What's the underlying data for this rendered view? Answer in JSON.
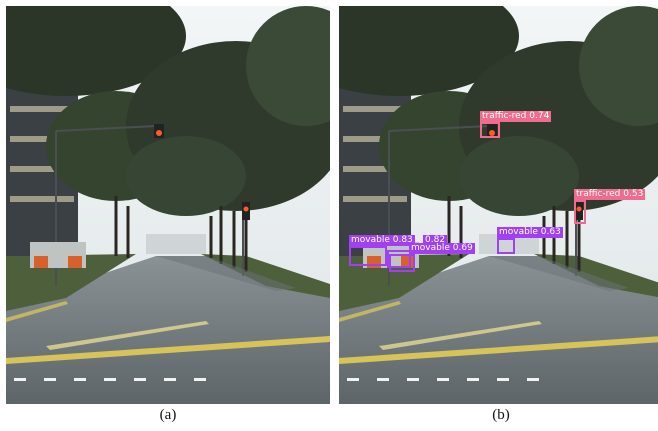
{
  "panels": [
    {
      "id": "a",
      "caption": "(a)"
    },
    {
      "id": "b",
      "caption": "(b)"
    }
  ],
  "detections": [
    {
      "label": "traffic-red 0.74",
      "color": "#f06c8f"
    },
    {
      "label": "traffic-red 0.53",
      "color": "#f06c8f"
    },
    {
      "label": "movable 0.83",
      "color": "#a040f0"
    },
    {
      "label": "0.82",
      "color": "#a040f0"
    },
    {
      "label": "movable 0.69",
      "color": "#a040f0"
    },
    {
      "label": "movable 0.63",
      "color": "#a040f0"
    }
  ],
  "colors": {
    "sky": "#e9eef0",
    "foliage": "#2f3a2c",
    "road": "#6b7377",
    "lane_yellow": "#d6c35a",
    "traffic_light_red": "#ff5a2a"
  }
}
